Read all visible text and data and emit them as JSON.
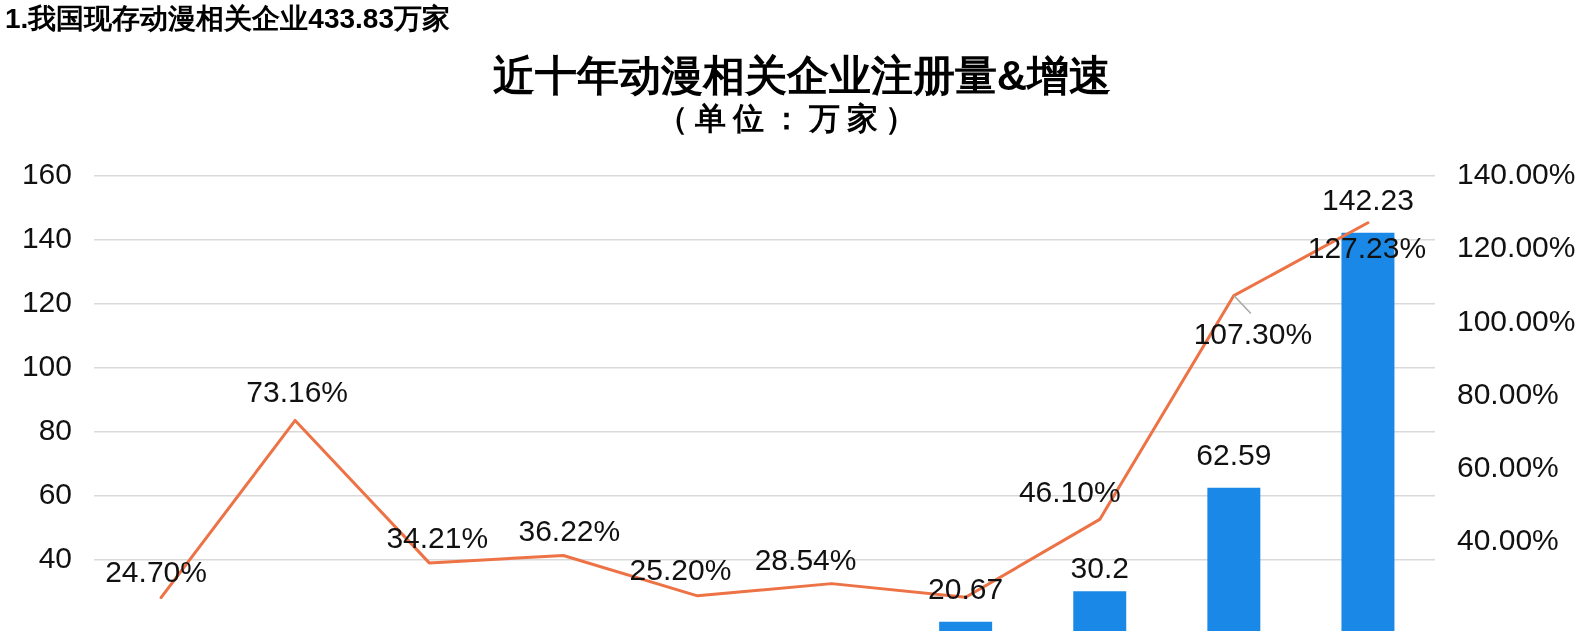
{
  "chart_data": {
    "type": "bar",
    "title": "近十年动漫相关企业注册量&增速",
    "subtitle": "（单位：万家）",
    "annotations": [
      "1.我国现存动漫相关企业433.83万家"
    ],
    "categories": [
      null,
      null,
      null,
      null,
      null,
      null,
      null,
      null,
      null,
      null
    ],
    "series": [
      {
        "color": "#1a88e6",
        "values": [
          null,
          null,
          null,
          null,
          null,
          null,
          20.67,
          30.2,
          62.59,
          142.23
        ],
        "value_labels": [
          null,
          null,
          null,
          null,
          null,
          null,
          "20.67",
          "30.2",
          "62.59",
          "142.23"
        ]
      },
      {
        "type": "line",
        "axis": "y2",
        "color": "#ed7245",
        "values": [
          24.7,
          73.16,
          34.21,
          36.22,
          25.2,
          28.54,
          24.8,
          46.1,
          107.3,
          127.23
        ],
        "value_labels": [
          "24.70%",
          "73.16%",
          "34.21%",
          "36.22%",
          "25.20%",
          "28.54%",
          null,
          "46.10%",
          "107.30%",
          "127.23%"
        ]
      }
    ],
    "ylim": [
      0,
      160
    ],
    "yticks": [
      40,
      60,
      80,
      100,
      120,
      140,
      160
    ],
    "y2lim": [
      0,
      140
    ],
    "y2ticks": [
      {
        "value": 40,
        "label": "40.00%"
      },
      {
        "value": 60,
        "label": "60.00%"
      },
      {
        "value": 80,
        "label": "80.00%"
      },
      {
        "value": 100,
        "label": "100.00%"
      },
      {
        "value": 120,
        "label": "120.00%"
      },
      {
        "value": 140,
        "label": "140.00%"
      }
    ],
    "grid": "y"
  }
}
